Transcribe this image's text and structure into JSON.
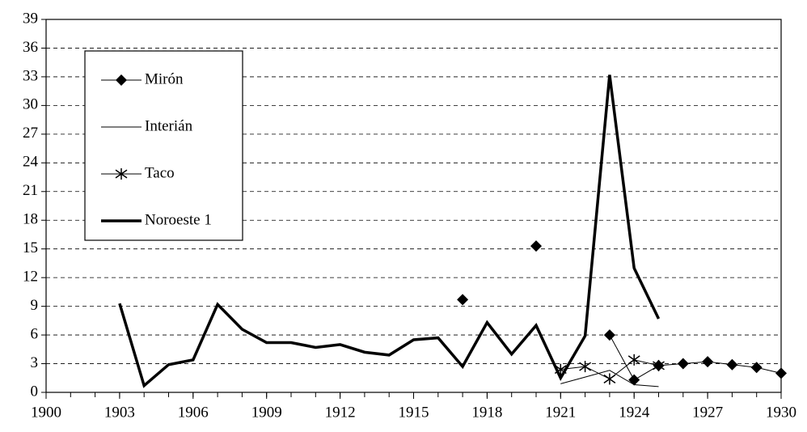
{
  "chart_data": {
    "type": "line",
    "x": [
      1903,
      1904,
      1905,
      1906,
      1907,
      1908,
      1909,
      1910,
      1911,
      1912,
      1913,
      1914,
      1915,
      1916,
      1917,
      1918,
      1919,
      1920,
      1921,
      1922,
      1923,
      1924,
      1925,
      1926,
      1927,
      1928,
      1929,
      1930
    ],
    "series": [
      {
        "name": "Mirón",
        "color": "#000000",
        "marker": "diamond",
        "line_width": 1,
        "values": [
          null,
          null,
          null,
          null,
          null,
          null,
          null,
          null,
          null,
          null,
          null,
          null,
          null,
          null,
          9.7,
          null,
          null,
          15.3,
          null,
          null,
          6.0,
          1.3,
          2.8,
          3.0,
          3.2,
          2.9,
          2.6,
          2.0
        ]
      },
      {
        "name": "Interián",
        "color": "#000000",
        "marker": "none",
        "line_width": 1,
        "values": [
          null,
          null,
          null,
          null,
          null,
          null,
          null,
          null,
          null,
          null,
          null,
          null,
          null,
          null,
          null,
          null,
          null,
          null,
          0.9,
          1.6,
          2.3,
          0.8,
          0.6,
          null,
          null,
          null,
          null,
          null
        ]
      },
      {
        "name": "Taco",
        "color": "#000000",
        "marker": "asterisk",
        "line_width": 1,
        "values": [
          null,
          null,
          null,
          null,
          null,
          null,
          null,
          null,
          null,
          null,
          null,
          null,
          null,
          null,
          null,
          null,
          null,
          null,
          2.4,
          2.7,
          1.4,
          3.4,
          2.8,
          null,
          null,
          null,
          null,
          null
        ]
      },
      {
        "name": "Noroeste 1",
        "color": "#000000",
        "marker": "none",
        "line_width": 3.5,
        "values": [
          9.3,
          0.7,
          2.9,
          3.4,
          9.2,
          6.6,
          5.2,
          5.2,
          4.7,
          5.0,
          4.2,
          3.9,
          5.5,
          5.7,
          2.7,
          7.3,
          4.0,
          7.0,
          1.5,
          5.9,
          33.2,
          13.0,
          7.7,
          null,
          null,
          null,
          null,
          null
        ]
      }
    ],
    "xlim": [
      1900,
      1930
    ],
    "xticks": [
      1900,
      1903,
      1906,
      1909,
      1912,
      1915,
      1918,
      1921,
      1924,
      1927,
      1930
    ],
    "ylim": [
      0,
      39
    ],
    "yticks": [
      0,
      3,
      6,
      9,
      12,
      15,
      18,
      21,
      24,
      27,
      30,
      33,
      36,
      39
    ],
    "grid": true,
    "legend": "upper left"
  }
}
